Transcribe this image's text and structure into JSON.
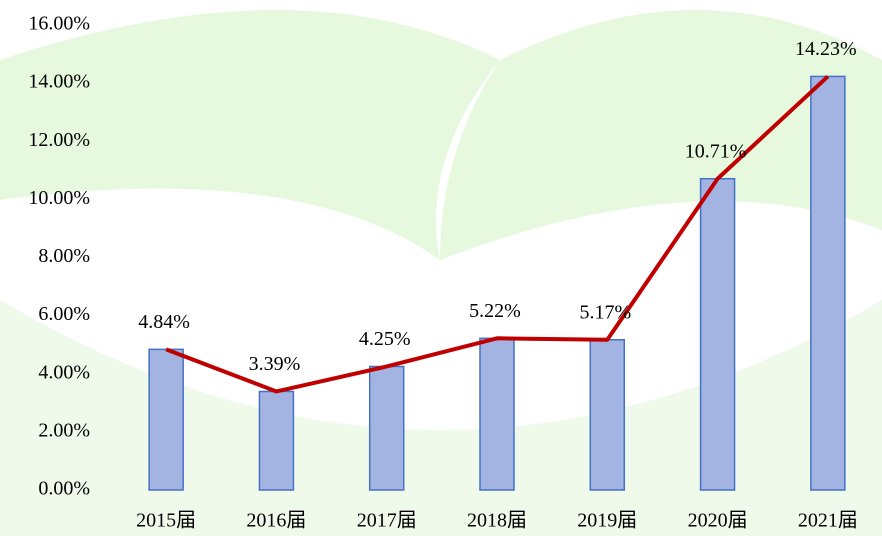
{
  "chart_data": {
    "type": "bar_line",
    "categories": [
      "2015届",
      "2016届",
      "2017届",
      "2018届",
      "2019届",
      "2020届",
      "2021届"
    ],
    "series": [
      {
        "type": "bar",
        "color": "#a4b4e2",
        "values": [
          4.84,
          3.39,
          4.25,
          5.22,
          5.17,
          10.71,
          14.23
        ],
        "value_labels": [
          "4.84%",
          "3.39%",
          "4.25%",
          "5.22%",
          "5.17%",
          "10.71%",
          "14.23%"
        ]
      },
      {
        "type": "line",
        "color": "#c00000",
        "values": [
          4.84,
          3.39,
          4.25,
          5.22,
          5.17,
          10.71,
          14.23
        ]
      }
    ],
    "ylim": [
      0,
      16
    ],
    "yticks": [
      {
        "value": 0,
        "label": "0.00%"
      },
      {
        "value": 2,
        "label": "2.00%"
      },
      {
        "value": 4,
        "label": "4.00%"
      },
      {
        "value": 6,
        "label": "6.00%"
      },
      {
        "value": 8,
        "label": "8.00%"
      },
      {
        "value": 10,
        "label": "10.00%"
      },
      {
        "value": 12,
        "label": "12.00%"
      },
      {
        "value": 14,
        "label": "14.00%"
      },
      {
        "value": 16,
        "label": "16.00%"
      }
    ],
    "grid": false
  }
}
